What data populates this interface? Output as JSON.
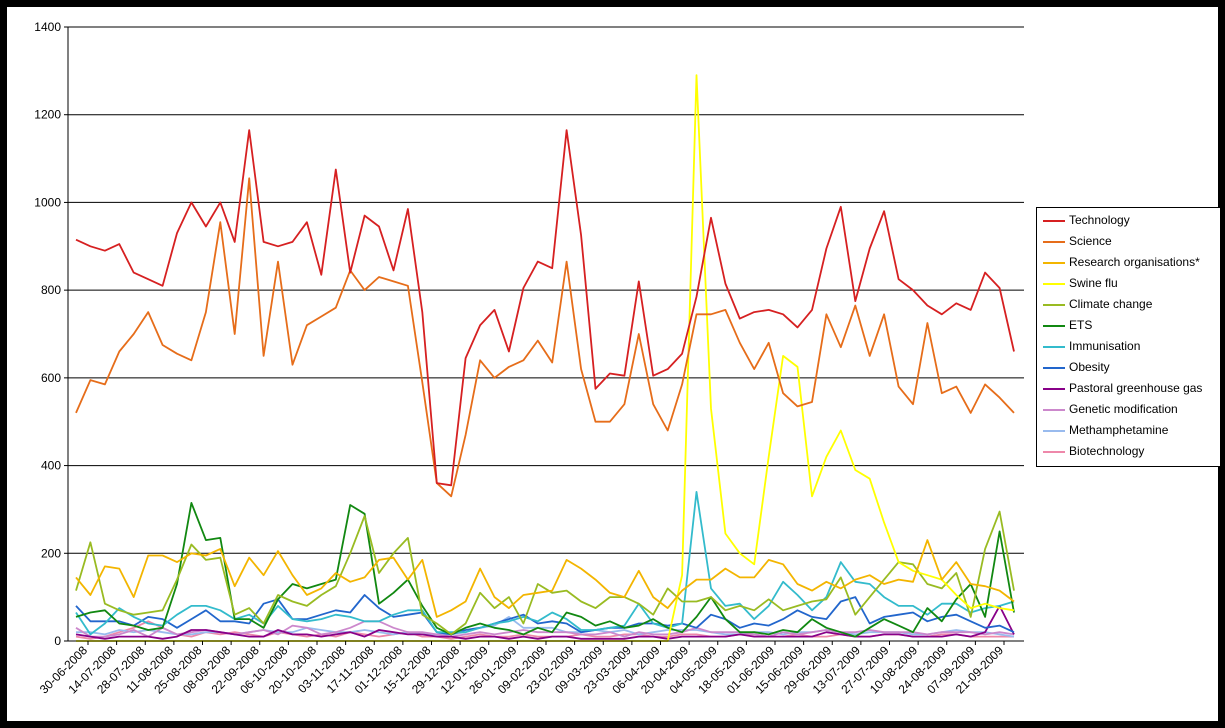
{
  "chart_data": {
    "type": "line",
    "title": "",
    "xlabel": "",
    "ylabel": "",
    "ylim": [
      0,
      1400
    ],
    "yticks": [
      0,
      200,
      400,
      600,
      800,
      1000,
      1200,
      1400
    ],
    "grid": "horizontal",
    "legend_position": "right",
    "x_labels": [
      "30-06-2008",
      "14-07-2008",
      "28-07-2008",
      "11-08-2008",
      "25-08-2008",
      "08-09-2008",
      "22-09-2008",
      "06-10-2008",
      "20-10-2008",
      "03-11-2008",
      "17-11-2008",
      "01-12-2008",
      "15-12-2008",
      "29-12-2008",
      "12-01-2009",
      "26-01-2009",
      "09-02-2009",
      "23-02-2009",
      "09-03-2009",
      "23-03-2009",
      "06-04-2009",
      "20-04-2009",
      "04-05-2009",
      "18-05-2009",
      "01-06-2009",
      "15-06-2009",
      "29-06-2009",
      "13-07-2009",
      "27-07-2009",
      "10-08-2009",
      "24-08-2009",
      "07-09-2009",
      "21-09-2009"
    ],
    "series": [
      {
        "name": "Technology",
        "color": "#d62021",
        "values": [
          915,
          900,
          890,
          905,
          840,
          825,
          810,
          930,
          1000,
          945,
          1000,
          910,
          1165,
          910,
          900,
          910,
          955,
          835,
          1075,
          840,
          970,
          945,
          845,
          985,
          750,
          360,
          355,
          645,
          720,
          755,
          660,
          805,
          865,
          850,
          1165,
          925,
          575,
          610,
          605,
          820,
          605,
          620,
          655,
          785,
          965,
          815,
          735,
          750,
          755,
          745,
          715,
          755,
          895,
          990,
          775,
          895,
          980,
          825,
          800,
          765,
          745,
          770,
          755,
          840,
          805,
          660
        ]
      },
      {
        "name": "Science",
        "color": "#e66d1a",
        "values": [
          520,
          595,
          585,
          660,
          700,
          750,
          675,
          655,
          640,
          750,
          955,
          700,
          1055,
          650,
          865,
          630,
          720,
          740,
          760,
          845,
          800,
          830,
          820,
          810,
          590,
          360,
          330,
          470,
          640,
          600,
          625,
          640,
          685,
          635,
          865,
          620,
          500,
          500,
          540,
          700,
          540,
          480,
          585,
          745,
          745,
          755,
          680,
          620,
          680,
          565,
          535,
          545,
          745,
          670,
          765,
          650,
          745,
          580,
          540,
          725,
          565,
          580,
          520,
          585,
          555,
          520
        ]
      },
      {
        "name": "Research organisations*",
        "color": "#f3b500",
        "values": [
          145,
          105,
          170,
          165,
          100,
          195,
          195,
          180,
          200,
          195,
          210,
          125,
          190,
          150,
          205,
          150,
          105,
          120,
          155,
          135,
          145,
          185,
          190,
          140,
          185,
          55,
          70,
          90,
          165,
          100,
          75,
          105,
          110,
          115,
          185,
          165,
          140,
          110,
          100,
          160,
          100,
          75,
          115,
          140,
          140,
          165,
          145,
          145,
          185,
          175,
          130,
          115,
          135,
          120,
          140,
          150,
          130,
          140,
          135,
          230,
          140,
          180,
          130,
          125,
          115,
          90
        ]
      },
      {
        "name": "Swine flu",
        "color": "#ffff00",
        "values": [
          0,
          0,
          0,
          0,
          0,
          0,
          0,
          0,
          0,
          0,
          0,
          0,
          0,
          0,
          0,
          0,
          0,
          0,
          0,
          0,
          0,
          0,
          0,
          0,
          0,
          0,
          0,
          0,
          0,
          0,
          0,
          0,
          0,
          0,
          0,
          0,
          0,
          0,
          0,
          0,
          0,
          0,
          150,
          1290,
          530,
          245,
          200,
          175,
          420,
          650,
          625,
          330,
          420,
          480,
          390,
          370,
          270,
          180,
          160,
          150,
          140,
          105,
          75,
          85,
          75,
          70
        ]
      },
      {
        "name": "Climate change",
        "color": "#99bb22",
        "values": [
          115,
          225,
          85,
          70,
          60,
          65,
          70,
          140,
          220,
          185,
          190,
          60,
          75,
          40,
          105,
          90,
          80,
          105,
          125,
          200,
          285,
          155,
          200,
          235,
          60,
          40,
          15,
          40,
          110,
          75,
          100,
          40,
          130,
          110,
          115,
          90,
          75,
          100,
          100,
          85,
          60,
          120,
          90,
          90,
          100,
          70,
          80,
          70,
          95,
          70,
          80,
          90,
          95,
          145,
          60,
          100,
          140,
          180,
          175,
          130,
          120,
          155,
          55,
          210,
          295,
          115
        ]
      },
      {
        "name": "ETS",
        "color": "#118811",
        "values": [
          55,
          65,
          70,
          40,
          35,
          25,
          30,
          130,
          315,
          230,
          235,
          50,
          50,
          30,
          95,
          130,
          120,
          130,
          140,
          310,
          290,
          85,
          110,
          140,
          80,
          30,
          15,
          30,
          40,
          30,
          25,
          15,
          30,
          20,
          65,
          55,
          35,
          45,
          30,
          35,
          50,
          30,
          20,
          55,
          100,
          50,
          20,
          20,
          15,
          25,
          20,
          50,
          30,
          20,
          10,
          30,
          50,
          35,
          20,
          75,
          45,
          95,
          130,
          55,
          250,
          65
        ]
      },
      {
        "name": "Immunisation",
        "color": "#33bbcc",
        "values": [
          65,
          15,
          40,
          75,
          55,
          40,
          35,
          60,
          80,
          80,
          70,
          50,
          60,
          40,
          80,
          50,
          45,
          50,
          60,
          55,
          45,
          45,
          60,
          70,
          70,
          20,
          20,
          20,
          30,
          40,
          45,
          55,
          45,
          65,
          50,
          25,
          25,
          30,
          35,
          85,
          40,
          30,
          40,
          340,
          120,
          80,
          85,
          50,
          80,
          135,
          105,
          70,
          100,
          180,
          135,
          130,
          100,
          80,
          80,
          60,
          85,
          85,
          65,
          75,
          80,
          90
        ]
      },
      {
        "name": "Obesity",
        "color": "#2266cc",
        "values": [
          80,
          45,
          45,
          45,
          35,
          55,
          50,
          30,
          50,
          70,
          45,
          45,
          40,
          85,
          95,
          50,
          50,
          60,
          70,
          65,
          105,
          75,
          55,
          60,
          65,
          20,
          15,
          25,
          30,
          40,
          50,
          60,
          40,
          45,
          40,
          20,
          25,
          30,
          30,
          40,
          40,
          35,
          40,
          30,
          60,
          50,
          30,
          40,
          35,
          50,
          70,
          55,
          50,
          90,
          100,
          40,
          55,
          60,
          65,
          45,
          55,
          60,
          45,
          30,
          35,
          20
        ]
      },
      {
        "name": "Pastoral greenhouse gas",
        "color": "#880088",
        "values": [
          15,
          10,
          5,
          10,
          10,
          10,
          5,
          10,
          25,
          25,
          20,
          15,
          10,
          10,
          25,
          15,
          15,
          10,
          15,
          20,
          10,
          25,
          20,
          15,
          15,
          10,
          10,
          5,
          10,
          10,
          5,
          10,
          5,
          10,
          10,
          5,
          5,
          5,
          5,
          10,
          10,
          5,
          10,
          10,
          10,
          10,
          15,
          10,
          10,
          10,
          10,
          10,
          20,
          15,
          10,
          10,
          15,
          15,
          10,
          10,
          10,
          15,
          10,
          20,
          80,
          15
        ]
      },
      {
        "name": "Genetic modification",
        "color": "#cc88cc",
        "values": [
          30,
          10,
          10,
          15,
          25,
          10,
          30,
          15,
          20,
          25,
          20,
          15,
          20,
          25,
          15,
          35,
          30,
          15,
          20,
          30,
          45,
          45,
          30,
          20,
          20,
          15,
          10,
          15,
          20,
          15,
          20,
          25,
          20,
          20,
          20,
          15,
          15,
          20,
          10,
          20,
          15,
          15,
          20,
          30,
          20,
          20,
          20,
          15,
          10,
          20,
          15,
          20,
          25,
          20,
          20,
          25,
          20,
          20,
          20,
          15,
          20,
          20,
          20,
          15,
          20,
          15
        ]
      },
      {
        "name": "Methamphetamine",
        "color": "#99bbee",
        "values": [
          20,
          20,
          15,
          25,
          20,
          25,
          20,
          15,
          15,
          20,
          20,
          15,
          20,
          25,
          20,
          20,
          30,
          25,
          20,
          20,
          25,
          20,
          15,
          20,
          15,
          15,
          15,
          20,
          30,
          35,
          55,
          30,
          30,
          30,
          20,
          20,
          25,
          20,
          25,
          15,
          20,
          25,
          25,
          25,
          20,
          15,
          15,
          20,
          20,
          15,
          20,
          20,
          25,
          20,
          15,
          20,
          20,
          20,
          15,
          15,
          20,
          25,
          20,
          20,
          15,
          10
        ]
      },
      {
        "name": "Biotechnology",
        "color": "#ee88aa",
        "values": [
          10,
          5,
          10,
          20,
          30,
          45,
          30,
          15,
          10,
          20,
          15,
          20,
          15,
          10,
          20,
          15,
          10,
          15,
          10,
          20,
          15,
          10,
          15,
          20,
          10,
          10,
          5,
          10,
          15,
          10,
          10,
          15,
          10,
          10,
          10,
          15,
          10,
          10,
          15,
          15,
          10,
          10,
          15,
          15,
          10,
          10,
          15,
          15,
          10,
          10,
          15,
          10,
          10,
          15,
          10,
          10,
          15,
          15,
          10,
          10,
          15,
          15,
          10,
          10,
          10,
          10
        ]
      }
    ]
  }
}
